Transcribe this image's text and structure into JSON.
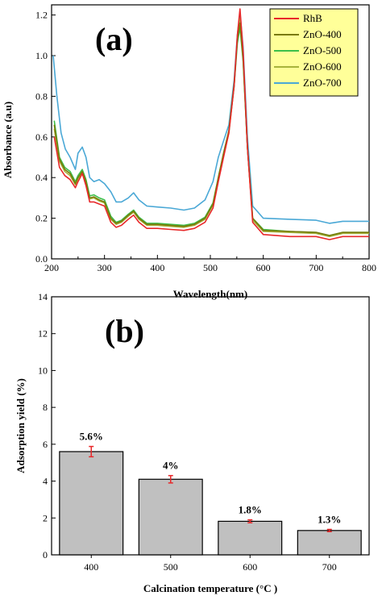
{
  "figure": {
    "colors": {
      "RhB": "#e8282a",
      "ZnO-400": "#7a7a0a",
      "ZnO-500": "#3cbf4a",
      "ZnO-600": "#a7b33c",
      "ZnO-700": "#4aa8d6",
      "bar_fill": "#c0c0c0",
      "error_bar": "#e8282a",
      "legend_bg": "#ffff99"
    }
  },
  "chart_data": [
    {
      "type": "line",
      "panel_label": "(a)",
      "xlabel": "Wavelength(nm)",
      "ylabel": "Absorbance  (a.u)",
      "xlim": [
        200,
        800
      ],
      "ylim": [
        0,
        1.25
      ],
      "xticks": [
        "200",
        "300",
        "400",
        "500",
        "600",
        "700",
        "800"
      ],
      "yticks": [
        "0.0",
        "0.2",
        "0.4",
        "0.6",
        "0.8",
        "1.0",
        "1.2"
      ],
      "legend_position": "top-right",
      "grid": false,
      "series": [
        {
          "name": "RhB",
          "x": [
            205,
            215,
            225,
            235,
            245,
            250,
            258,
            265,
            272,
            280,
            290,
            300,
            312,
            322,
            332,
            345,
            355,
            365,
            380,
            400,
            425,
            450,
            470,
            490,
            505,
            515,
            525,
            535,
            545,
            551,
            556,
            562,
            570,
            580,
            600,
            650,
            700,
            725,
            750,
            800
          ],
          "y": [
            0.6,
            0.45,
            0.41,
            0.39,
            0.35,
            0.38,
            0.42,
            0.36,
            0.28,
            0.28,
            0.27,
            0.26,
            0.18,
            0.155,
            0.165,
            0.195,
            0.215,
            0.18,
            0.15,
            0.15,
            0.145,
            0.14,
            0.15,
            0.18,
            0.25,
            0.38,
            0.5,
            0.62,
            0.85,
            1.1,
            1.23,
            1.02,
            0.55,
            0.18,
            0.12,
            0.11,
            0.11,
            0.095,
            0.11,
            0.11
          ]
        },
        {
          "name": "ZnO-400",
          "x": [
            205,
            215,
            225,
            235,
            245,
            250,
            258,
            265,
            272,
            280,
            290,
            300,
            312,
            322,
            332,
            345,
            355,
            365,
            380,
            400,
            425,
            450,
            470,
            490,
            505,
            515,
            525,
            535,
            545,
            551,
            556,
            562,
            570,
            580,
            600,
            650,
            700,
            725,
            750,
            800
          ],
          "y": [
            0.66,
            0.49,
            0.44,
            0.42,
            0.37,
            0.4,
            0.43,
            0.38,
            0.3,
            0.305,
            0.29,
            0.28,
            0.2,
            0.175,
            0.185,
            0.215,
            0.235,
            0.2,
            0.17,
            0.17,
            0.165,
            0.16,
            0.17,
            0.2,
            0.27,
            0.4,
            0.52,
            0.63,
            0.86,
            1.08,
            1.16,
            0.98,
            0.55,
            0.2,
            0.14,
            0.135,
            0.13,
            0.115,
            0.13,
            0.13
          ]
        },
        {
          "name": "ZnO-500",
          "x": [
            205,
            215,
            225,
            235,
            245,
            250,
            258,
            265,
            272,
            280,
            290,
            300,
            312,
            322,
            332,
            345,
            355,
            365,
            380,
            400,
            425,
            450,
            470,
            490,
            505,
            515,
            525,
            535,
            545,
            551,
            556,
            562,
            570,
            580,
            600,
            650,
            700,
            725,
            750,
            800
          ],
          "y": [
            0.68,
            0.5,
            0.45,
            0.43,
            0.38,
            0.41,
            0.44,
            0.39,
            0.31,
            0.315,
            0.3,
            0.29,
            0.21,
            0.18,
            0.19,
            0.22,
            0.24,
            0.205,
            0.175,
            0.175,
            0.17,
            0.165,
            0.175,
            0.205,
            0.275,
            0.4,
            0.52,
            0.63,
            0.85,
            1.06,
            1.14,
            0.97,
            0.55,
            0.2,
            0.145,
            0.135,
            0.13,
            0.115,
            0.13,
            0.13
          ]
        },
        {
          "name": "ZnO-600",
          "x": [
            205,
            215,
            225,
            235,
            245,
            250,
            258,
            265,
            272,
            280,
            290,
            300,
            312,
            322,
            332,
            345,
            355,
            365,
            380,
            400,
            425,
            450,
            470,
            490,
            505,
            515,
            525,
            535,
            545,
            551,
            556,
            562,
            570,
            580,
            600,
            650,
            700,
            725,
            750,
            800
          ],
          "y": [
            0.64,
            0.48,
            0.43,
            0.41,
            0.365,
            0.395,
            0.425,
            0.375,
            0.295,
            0.3,
            0.285,
            0.275,
            0.195,
            0.17,
            0.18,
            0.21,
            0.23,
            0.195,
            0.165,
            0.165,
            0.16,
            0.155,
            0.165,
            0.195,
            0.265,
            0.39,
            0.51,
            0.62,
            0.85,
            1.08,
            1.18,
            0.99,
            0.55,
            0.19,
            0.135,
            0.13,
            0.125,
            0.11,
            0.125,
            0.125
          ]
        },
        {
          "name": "ZnO-700",
          "x": [
            203,
            210,
            218,
            226,
            235,
            245,
            250,
            258,
            265,
            272,
            280,
            290,
            300,
            312,
            322,
            332,
            345,
            355,
            365,
            380,
            400,
            425,
            450,
            470,
            490,
            505,
            515,
            525,
            535,
            545,
            551,
            556,
            562,
            570,
            580,
            600,
            650,
            700,
            725,
            750,
            800
          ],
          "y": [
            1.0,
            0.8,
            0.62,
            0.54,
            0.5,
            0.44,
            0.52,
            0.55,
            0.5,
            0.4,
            0.38,
            0.39,
            0.37,
            0.33,
            0.28,
            0.28,
            0.3,
            0.325,
            0.29,
            0.26,
            0.255,
            0.25,
            0.24,
            0.25,
            0.29,
            0.38,
            0.5,
            0.58,
            0.66,
            0.88,
            1.1,
            1.21,
            1.04,
            0.6,
            0.26,
            0.2,
            0.195,
            0.19,
            0.175,
            0.185,
            0.185
          ]
        }
      ]
    },
    {
      "type": "bar",
      "panel_label": "(b)",
      "xlabel": "Calcination temperature (°C )",
      "ylabel": "Adsorption yield (%)",
      "ylim": [
        0,
        14
      ],
      "yticks": [
        "0",
        "2",
        "4",
        "6",
        "8",
        "10",
        "12",
        "14"
      ],
      "categories": [
        "400",
        "500",
        "600",
        "700"
      ],
      "values": [
        5.6,
        4.1,
        1.82,
        1.32
      ],
      "errors": [
        0.28,
        0.2,
        0.08,
        0.06
      ],
      "data_labels": [
        "5.6%",
        "4%",
        "1.8%",
        "1.3%"
      ],
      "grid": false
    }
  ]
}
